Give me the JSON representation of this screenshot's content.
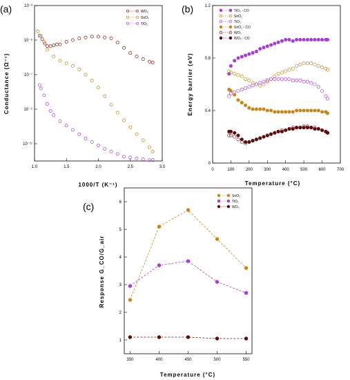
{
  "colors": {
    "WO3": "#8b1a1a",
    "SnO2": "#c8861a",
    "TiO2": "#b040e0",
    "WO3_fill": "#5a0f0f",
    "SnO2_fill": "#c8861a",
    "TiO2_fill": "#a63bd8"
  },
  "chart_data": [
    {
      "panel": "(a)",
      "type": "scatter",
      "xlabel": "1000/T (K⁻¹)",
      "ylabel": "Conductance (Ω⁻¹)",
      "xlim": [
        1.0,
        3.0
      ],
      "ylim_log10": [
        -12,
        -3
      ],
      "log_y": true,
      "xticks": [
        "1.0",
        "1.5",
        "2.0",
        "2.5",
        "3.0"
      ],
      "yticks": [
        "10⁻³",
        "10⁻⁵",
        "10⁻⁷",
        "10⁻⁹",
        "10⁻¹¹"
      ],
      "legend_position": "top-right",
      "series": [
        {
          "name": "WO₃",
          "marker": "open-circle",
          "x": [
            1.08,
            1.12,
            1.16,
            1.2,
            1.25,
            1.3,
            1.35,
            1.4,
            1.5,
            1.6,
            1.7,
            1.8,
            1.9,
            2.0,
            2.1,
            2.2,
            2.3,
            2.4,
            2.5,
            2.6,
            2.7,
            2.8,
            2.85
          ],
          "log10_y": [
            -4.75,
            -4.95,
            -5.2,
            -5.35,
            -5.35,
            -5.3,
            -5.25,
            -5.25,
            -5.1,
            -5.0,
            -4.9,
            -4.85,
            -4.8,
            -4.8,
            -4.85,
            -4.9,
            -5.15,
            -5.45,
            -5.75,
            -5.95,
            -6.1,
            -6.25,
            -6.3
          ]
        },
        {
          "name": "SnO₂",
          "marker": "open-circle",
          "x": [
            1.05,
            1.1,
            1.15,
            1.2,
            1.3,
            1.4,
            1.5,
            1.6,
            1.7,
            1.8,
            1.9,
            2.0,
            2.1,
            2.2,
            2.3,
            2.4,
            2.5,
            2.6,
            2.7,
            2.8,
            2.85
          ],
          "log10_y": [
            -4.5,
            -4.75,
            -5.1,
            -5.55,
            -5.95,
            -6.2,
            -6.35,
            -6.5,
            -6.7,
            -7.0,
            -7.35,
            -7.75,
            -8.25,
            -8.75,
            -9.2,
            -9.65,
            -10.05,
            -10.45,
            -10.8,
            -11.2,
            -11.45
          ]
        },
        {
          "name": "TiO₂",
          "marker": "open-circle",
          "x": [
            1.08,
            1.1,
            1.15,
            1.2,
            1.25,
            1.3,
            1.4,
            1.5,
            1.6,
            1.7,
            1.8,
            1.9,
            2.0,
            2.1,
            2.2,
            2.3,
            2.4,
            2.5,
            2.6,
            2.7,
            2.8,
            2.85
          ],
          "log10_y": [
            -7.6,
            -7.8,
            -8.2,
            -8.7,
            -9.1,
            -9.35,
            -9.7,
            -9.95,
            -10.2,
            -10.45,
            -10.7,
            -10.9,
            -11.1,
            -11.3,
            -11.45,
            -11.6,
            -11.75,
            -11.8,
            -11.85,
            -11.9,
            -11.95,
            -11.95
          ]
        }
      ]
    },
    {
      "panel": "(b)",
      "type": "scatter",
      "xlabel": "Temperature (°C)",
      "ylabel": "Energy barrier (eV)",
      "xlim": [
        0,
        700
      ],
      "ylim": [
        0,
        1.2
      ],
      "xticks": [
        "0",
        "100",
        "200",
        "300",
        "400",
        "500",
        "600",
        "700"
      ],
      "yticks": [
        "0",
        "0.4",
        "0.8",
        "1.2"
      ],
      "legend_position": "top-left",
      "series": [
        {
          "name": "TiO₂ - CO",
          "marker": "filled-circle",
          "color": "TiO2_fill",
          "x": [
            90,
            100,
            120,
            140,
            160,
            180,
            200,
            220,
            240,
            260,
            280,
            300,
            320,
            340,
            360,
            380,
            400,
            420,
            440,
            460,
            480,
            500,
            520,
            540,
            560,
            580,
            600,
            620,
            630
          ],
          "y": [
            0.68,
            0.74,
            0.78,
            0.8,
            0.81,
            0.82,
            0.83,
            0.84,
            0.85,
            0.87,
            0.88,
            0.89,
            0.9,
            0.91,
            0.92,
            0.93,
            0.94,
            0.94,
            0.93,
            0.94,
            0.94,
            0.94,
            0.94,
            0.94,
            0.94,
            0.94,
            0.94,
            0.94,
            0.94
          ]
        },
        {
          "name": "SnO₂",
          "marker": "open-circle",
          "color": "SnO2",
          "x": [
            90,
            100,
            120,
            140,
            160,
            180,
            200,
            220,
            240,
            260,
            280,
            300,
            320,
            340,
            360,
            380,
            400,
            420,
            440,
            460,
            480,
            500,
            520,
            540,
            560,
            580,
            600,
            620,
            630
          ],
          "y": [
            0.7,
            0.69,
            0.68,
            0.67,
            0.66,
            0.64,
            0.63,
            0.61,
            0.6,
            0.59,
            0.6,
            0.62,
            0.64,
            0.66,
            0.68,
            0.69,
            0.7,
            0.71,
            0.72,
            0.74,
            0.75,
            0.76,
            0.76,
            0.76,
            0.75,
            0.74,
            0.73,
            0.72,
            0.71
          ]
        },
        {
          "name": "TiO₂",
          "marker": "open-circle",
          "color": "TiO2",
          "x": [
            90,
            100,
            120,
            140,
            160,
            180,
            200,
            220,
            240,
            260,
            280,
            300,
            320,
            340,
            360,
            380,
            400,
            420,
            440,
            460,
            480,
            500,
            520,
            540,
            560,
            580,
            600,
            620,
            630
          ],
          "y": [
            0.51,
            0.53,
            0.54,
            0.55,
            0.56,
            0.57,
            0.58,
            0.59,
            0.6,
            0.61,
            0.62,
            0.63,
            0.64,
            0.64,
            0.64,
            0.64,
            0.64,
            0.64,
            0.63,
            0.63,
            0.63,
            0.62,
            0.62,
            0.61,
            0.6,
            0.58,
            0.55,
            0.51,
            0.49
          ]
        },
        {
          "name": "SnO₂ - CO",
          "marker": "filled-circle",
          "color": "SnO2_fill",
          "x": [
            90,
            100,
            120,
            140,
            160,
            180,
            200,
            220,
            240,
            260,
            280,
            300,
            320,
            340,
            360,
            380,
            400,
            420,
            440,
            460,
            480,
            500,
            520,
            540,
            560,
            580,
            600,
            620,
            630
          ],
          "y": [
            0.56,
            0.55,
            0.52,
            0.48,
            0.46,
            0.44,
            0.42,
            0.41,
            0.41,
            0.41,
            0.41,
            0.4,
            0.4,
            0.39,
            0.39,
            0.39,
            0.39,
            0.39,
            0.39,
            0.4,
            0.4,
            0.4,
            0.4,
            0.4,
            0.4,
            0.4,
            0.39,
            0.39,
            0.38
          ]
        },
        {
          "name": "WO₃",
          "marker": "open-circle",
          "color": "WO3",
          "x": [
            90,
            100,
            120,
            140,
            160,
            180,
            200,
            220,
            240,
            260,
            280,
            300,
            320,
            340,
            360,
            380,
            400,
            420,
            440,
            460,
            480,
            500,
            520,
            540,
            560,
            580,
            600,
            620,
            630
          ],
          "y": [
            0.21,
            0.21,
            0.2,
            0.18,
            0.16,
            0.15,
            0.16,
            0.17,
            0.18,
            0.19,
            0.2,
            0.21,
            0.22,
            0.23,
            0.24,
            0.25,
            0.25,
            0.26,
            0.27,
            0.27,
            0.27,
            0.28,
            0.28,
            0.27,
            0.27,
            0.26,
            0.25,
            0.24,
            0.23
          ]
        },
        {
          "name": "WO₃ - CO",
          "marker": "filled-circle",
          "color": "WO3_fill",
          "x": [
            90,
            100,
            120,
            140,
            160,
            180,
            200,
            220,
            240,
            260,
            280,
            300,
            320,
            340,
            360,
            380,
            400,
            420,
            440,
            460,
            480,
            500,
            520,
            540,
            560,
            580,
            600,
            620,
            630
          ],
          "y": [
            0.24,
            0.24,
            0.23,
            0.21,
            0.18,
            0.16,
            0.16,
            0.17,
            0.18,
            0.19,
            0.2,
            0.21,
            0.22,
            0.23,
            0.24,
            0.24,
            0.25,
            0.26,
            0.26,
            0.27,
            0.27,
            0.27,
            0.27,
            0.27,
            0.26,
            0.26,
            0.25,
            0.24,
            0.23
          ]
        }
      ]
    },
    {
      "panel": "(c)",
      "type": "line",
      "xlabel": "Temperature (°C)",
      "ylabel": "Response G_CO/G_air",
      "xlim": [
        340,
        560
      ],
      "ylim": [
        0.5,
        6.5
      ],
      "xticks": [
        "350",
        "400",
        "450",
        "500",
        "550"
      ],
      "yticks": [
        "1",
        "2",
        "3",
        "4",
        "5",
        "6"
      ],
      "legend_position": "top-right",
      "x": [
        350,
        400,
        450,
        500,
        550
      ],
      "series": [
        {
          "name": "SnO₂",
          "color": "SnO2_fill",
          "values": [
            2.45,
            5.1,
            5.7,
            4.65,
            3.6
          ]
        },
        {
          "name": "TiO₂",
          "color": "TiO2_fill",
          "values": [
            2.95,
            3.7,
            3.85,
            3.1,
            2.7
          ]
        },
        {
          "name": "WO₃",
          "color": "WO3_fill",
          "values": [
            1.1,
            1.1,
            1.1,
            1.05,
            1.05
          ]
        }
      ]
    }
  ]
}
